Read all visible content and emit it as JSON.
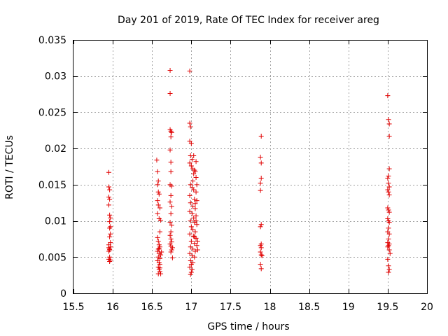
{
  "chart_data": {
    "type": "scatter",
    "title": "Day 201 of 2019, Rate Of TEC Index for receiver areg",
    "xlabel": "GPS time / hours",
    "ylabel": "ROTI / TECUs",
    "xlim": [
      15.5,
      20
    ],
    "ylim": [
      0,
      0.035
    ],
    "xticks": [
      15.5,
      16,
      16.5,
      17,
      17.5,
      18,
      18.5,
      19,
      19.5,
      20
    ],
    "xtick_labels": [
      "15.5",
      "16",
      "16.5",
      "17",
      "17.5",
      "18",
      "18.5",
      "19",
      "19.5",
      "20"
    ],
    "yticks": [
      0,
      0.005,
      0.01,
      0.015,
      0.02,
      0.025,
      0.03,
      0.035
    ],
    "ytick_labels": [
      "0",
      "0.005",
      "0.01",
      "0.015",
      "0.02",
      "0.025",
      "0.03",
      "0.035"
    ],
    "grid": true,
    "marker": "+",
    "color": "#e00000",
    "series": [
      {
        "name": "ROTI",
        "points": [
          [
            15.95,
            0.0167
          ],
          [
            15.95,
            0.0147
          ],
          [
            15.96,
            0.0143
          ],
          [
            15.95,
            0.0133
          ],
          [
            15.96,
            0.013
          ],
          [
            15.95,
            0.0122
          ],
          [
            15.96,
            0.0108
          ],
          [
            15.97,
            0.0104
          ],
          [
            15.96,
            0.0099
          ],
          [
            15.97,
            0.0092
          ],
          [
            15.96,
            0.009
          ],
          [
            15.97,
            0.0082
          ],
          [
            15.96,
            0.0078
          ],
          [
            15.95,
            0.0067
          ],
          [
            15.97,
            0.0064
          ],
          [
            15.96,
            0.0061
          ],
          [
            15.95,
            0.0058
          ],
          [
            15.96,
            0.005
          ],
          [
            15.95,
            0.0047
          ],
          [
            15.96,
            0.0044
          ],
          [
            15.97,
            0.0046
          ],
          [
            15.96,
            0.006
          ],
          [
            15.95,
            0.0063
          ],
          [
            15.97,
            0.007
          ],
          [
            16.56,
            0.0184
          ],
          [
            16.57,
            0.0168
          ],
          [
            16.58,
            0.0155
          ],
          [
            16.57,
            0.015
          ],
          [
            16.58,
            0.014
          ],
          [
            16.59,
            0.0137
          ],
          [
            16.57,
            0.0128
          ],
          [
            16.58,
            0.0122
          ],
          [
            16.6,
            0.0118
          ],
          [
            16.57,
            0.011
          ],
          [
            16.59,
            0.0103
          ],
          [
            16.61,
            0.0101
          ],
          [
            16.6,
            0.0085
          ],
          [
            16.57,
            0.0077
          ],
          [
            16.58,
            0.0072
          ],
          [
            16.59,
            0.0067
          ],
          [
            16.6,
            0.0064
          ],
          [
            16.58,
            0.0061
          ],
          [
            16.57,
            0.0058
          ],
          [
            16.59,
            0.0055
          ],
          [
            16.61,
            0.0053
          ],
          [
            16.58,
            0.005
          ],
          [
            16.6,
            0.0048
          ],
          [
            16.57,
            0.0045
          ],
          [
            16.59,
            0.0042
          ],
          [
            16.6,
            0.004
          ],
          [
            16.58,
            0.0036
          ],
          [
            16.59,
            0.0033
          ],
          [
            16.6,
            0.003
          ],
          [
            16.58,
            0.0027
          ],
          [
            16.61,
            0.0027
          ],
          [
            16.59,
            0.0062
          ],
          [
            16.62,
            0.0057
          ],
          [
            16.6,
            0.0035
          ],
          [
            16.73,
            0.0308
          ],
          [
            16.73,
            0.0276
          ],
          [
            16.73,
            0.0226
          ],
          [
            16.74,
            0.0224
          ],
          [
            16.75,
            0.0222
          ],
          [
            16.74,
            0.0216
          ],
          [
            16.73,
            0.0198
          ],
          [
            16.74,
            0.0181
          ],
          [
            16.74,
            0.0168
          ],
          [
            16.73,
            0.015
          ],
          [
            16.75,
            0.0148
          ],
          [
            16.74,
            0.0135
          ],
          [
            16.73,
            0.0126
          ],
          [
            16.75,
            0.012
          ],
          [
            16.74,
            0.011
          ],
          [
            16.73,
            0.0098
          ],
          [
            16.75,
            0.0094
          ],
          [
            16.74,
            0.0085
          ],
          [
            16.73,
            0.008
          ],
          [
            16.74,
            0.0075
          ],
          [
            16.75,
            0.0071
          ],
          [
            16.73,
            0.0068
          ],
          [
            16.74,
            0.0065
          ],
          [
            16.76,
            0.0063
          ],
          [
            16.75,
            0.006
          ],
          [
            16.74,
            0.0057
          ],
          [
            16.76,
            0.0049
          ],
          [
            16.98,
            0.0307
          ],
          [
            16.98,
            0.0235
          ],
          [
            16.99,
            0.023
          ],
          [
            16.98,
            0.021
          ],
          [
            17.0,
            0.0207
          ],
          [
            16.99,
            0.019
          ],
          [
            17.01,
            0.0185
          ],
          [
            16.98,
            0.018
          ],
          [
            17.0,
            0.0176
          ],
          [
            17.02,
            0.0172
          ],
          [
            17.04,
            0.017
          ],
          [
            17.05,
            0.0168
          ],
          [
            17.03,
            0.0165
          ],
          [
            17.06,
            0.016
          ],
          [
            17.02,
            0.0155
          ],
          [
            16.99,
            0.015
          ],
          [
            17.01,
            0.0146
          ],
          [
            17.03,
            0.0143
          ],
          [
            17.06,
            0.014
          ],
          [
            16.98,
            0.0135
          ],
          [
            17.04,
            0.013
          ],
          [
            17.07,
            0.0128
          ],
          [
            16.99,
            0.0125
          ],
          [
            17.02,
            0.012
          ],
          [
            17.05,
            0.0117
          ],
          [
            16.98,
            0.0113
          ],
          [
            17.01,
            0.011
          ],
          [
            17.06,
            0.0107
          ],
          [
            17.03,
            0.0104
          ],
          [
            16.99,
            0.01
          ],
          [
            17.04,
            0.0098
          ],
          [
            17.07,
            0.0095
          ],
          [
            17.0,
            0.0092
          ],
          [
            17.02,
            0.0088
          ],
          [
            17.05,
            0.0085
          ],
          [
            16.98,
            0.0082
          ],
          [
            17.03,
            0.0079
          ],
          [
            17.06,
            0.0076
          ],
          [
            17.0,
            0.0072
          ],
          [
            17.04,
            0.0069
          ],
          [
            17.07,
            0.0066
          ],
          [
            16.99,
            0.0064
          ],
          [
            17.02,
            0.0061
          ],
          [
            17.05,
            0.0058
          ],
          [
            17.08,
            0.006
          ],
          [
            16.98,
            0.0055
          ],
          [
            17.01,
            0.0052
          ],
          [
            17.04,
            0.005
          ],
          [
            16.99,
            0.0045
          ],
          [
            17.02,
            0.0042
          ],
          [
            17.0,
            0.004
          ],
          [
            16.98,
            0.0036
          ],
          [
            17.01,
            0.0033
          ],
          [
            17.0,
            0.0029
          ],
          [
            16.99,
            0.0026
          ],
          [
            17.03,
            0.019
          ],
          [
            17.06,
            0.0182
          ],
          [
            17.07,
            0.015
          ],
          [
            17.05,
            0.0124
          ],
          [
            17.06,
            0.01
          ],
          [
            17.04,
            0.0078
          ],
          [
            17.08,
            0.0072
          ],
          [
            17.89,
            0.0217
          ],
          [
            17.88,
            0.0188
          ],
          [
            17.89,
            0.018
          ],
          [
            17.89,
            0.0159
          ],
          [
            17.88,
            0.0152
          ],
          [
            17.88,
            0.0142
          ],
          [
            17.89,
            0.0095
          ],
          [
            17.88,
            0.0092
          ],
          [
            17.89,
            0.0068
          ],
          [
            17.88,
            0.0066
          ],
          [
            17.89,
            0.0063
          ],
          [
            17.88,
            0.0057
          ],
          [
            17.89,
            0.0053
          ],
          [
            17.9,
            0.0052
          ],
          [
            17.88,
            0.004
          ],
          [
            17.89,
            0.0034
          ],
          [
            19.5,
            0.0273
          ],
          [
            19.51,
            0.024
          ],
          [
            19.52,
            0.0234
          ],
          [
            19.52,
            0.0217
          ],
          [
            19.52,
            0.0172
          ],
          [
            19.51,
            0.0162
          ],
          [
            19.5,
            0.0159
          ],
          [
            19.51,
            0.0152
          ],
          [
            19.52,
            0.0147
          ],
          [
            19.5,
            0.0143
          ],
          [
            19.51,
            0.014
          ],
          [
            19.52,
            0.0136
          ],
          [
            19.5,
            0.0118
          ],
          [
            19.51,
            0.0115
          ],
          [
            19.52,
            0.0112
          ],
          [
            19.5,
            0.0103
          ],
          [
            19.51,
            0.01
          ],
          [
            19.52,
            0.0098
          ],
          [
            19.51,
            0.009
          ],
          [
            19.5,
            0.0085
          ],
          [
            19.52,
            0.0082
          ],
          [
            19.51,
            0.0075
          ],
          [
            19.5,
            0.007
          ],
          [
            19.52,
            0.0068
          ],
          [
            19.51,
            0.0066
          ],
          [
            19.5,
            0.0064
          ],
          [
            19.52,
            0.006
          ],
          [
            19.53,
            0.0055
          ],
          [
            19.5,
            0.0047
          ],
          [
            19.51,
            0.0038
          ],
          [
            19.52,
            0.0033
          ],
          [
            19.51,
            0.0029
          ]
        ]
      }
    ]
  }
}
